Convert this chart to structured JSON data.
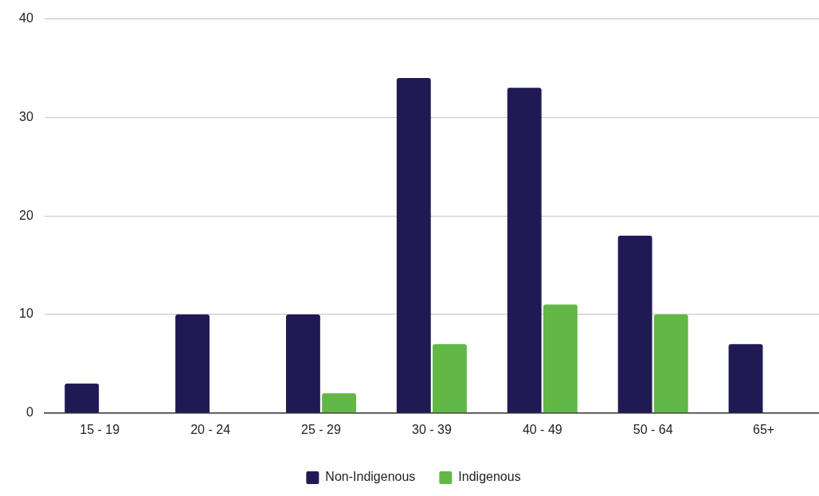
{
  "chart_data": {
    "type": "bar",
    "categories": [
      "15 - 19",
      "20 - 24",
      "25 - 29",
      "30 - 39",
      "40 - 49",
      "50 - 64",
      "65+"
    ],
    "series": [
      {
        "name": "Non-Indigenous",
        "color": "#201a54",
        "values": [
          3,
          10,
          10,
          34,
          33,
          18,
          7
        ]
      },
      {
        "name": "Indigenous",
        "color": "#62b846",
        "values": [
          0,
          0,
          2,
          7,
          11,
          10,
          0
        ]
      }
    ],
    "ylim": [
      0,
      40
    ],
    "yticks": [
      0,
      10,
      20,
      30,
      40
    ],
    "grid": "y",
    "legend": "bottom"
  }
}
